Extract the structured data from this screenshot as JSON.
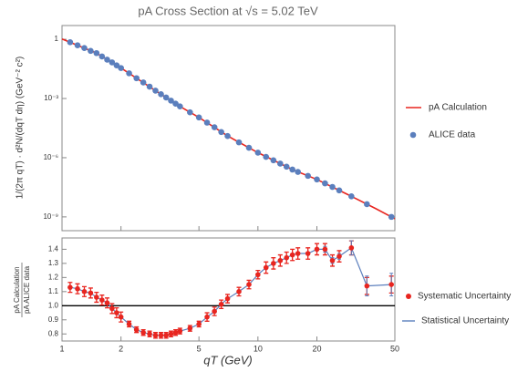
{
  "chart_data": [
    {
      "type": "scatter",
      "title": "pA Cross Section at √s = 5.02 TeV",
      "ylabel": "1/(2π qT) · d²N/(dqT dη) (GeV⁻² c²)",
      "xlim": [
        1,
        50
      ],
      "ylim": [
        2e-10,
        5
      ],
      "log_x": true,
      "log_y": true,
      "yticks": [
        1,
        {
          "value": 0.001,
          "label": "10⁻³"
        },
        {
          "value": 1e-06,
          "label": "10⁻⁶"
        },
        {
          "value": 1e-09,
          "label": "10⁻⁹"
        }
      ],
      "series": [
        {
          "name": "pA Calculation",
          "color": "#e8251f",
          "type": "line",
          "x": [
            1,
            1.5,
            2,
            3,
            4,
            5,
            7,
            10,
            15,
            20,
            30,
            40,
            50
          ],
          "values": [
            1.05,
            0.2,
            0.035,
            0.0025,
            0.0004,
            0.00011,
            1.26e-05,
            1.8e-06,
            2.5e-07,
            7.9e-08,
            1.1e-08,
            2.6e-09,
            8.1e-10
          ]
        },
        {
          "name": "ALICE data",
          "color": "#5b7fbd",
          "type": "scatter",
          "x": [
            1.1,
            1.2,
            1.3,
            1.4,
            1.5,
            1.6,
            1.7,
            1.8,
            1.9,
            2.0,
            2.2,
            2.4,
            2.6,
            2.8,
            3.0,
            3.2,
            3.4,
            3.6,
            3.8,
            4.0,
            4.5,
            5,
            5.5,
            6,
            6.5,
            7,
            8,
            9,
            10,
            11,
            12,
            13,
            14,
            15,
            16,
            18,
            20,
            22,
            24,
            26,
            30,
            36,
            48
          ],
          "values": [
            0.71,
            0.5,
            0.36,
            0.26,
            0.2,
            0.135,
            0.093,
            0.068,
            0.048,
            0.035,
            0.019,
            0.0107,
            0.0065,
            0.004,
            0.0025,
            0.00166,
            0.00112,
            0.00078,
            0.00055,
            0.0004,
            0.0002,
            0.00011,
            6e-05,
            3.5e-05,
            2e-05,
            1.26e-05,
            6e-06,
            3.2e-06,
            1.8e-06,
            1.1e-06,
            7.4e-07,
            5e-07,
            3.5e-07,
            2.5e-07,
            1.9e-07,
            1.2e-07,
            7.9e-08,
            5e-08,
            3.3e-08,
            2.2e-08,
            1.1e-08,
            4.4e-09,
            1e-09
          ]
        }
      ]
    },
    {
      "type": "errorbar",
      "ylabel_top": "pA Calculation",
      "ylabel_bottom": "pA ALICE data",
      "xlabel": "qT (GeV)",
      "xlim": [
        1,
        50
      ],
      "log_x": true,
      "ylim": [
        0.75,
        1.48
      ],
      "xticks": [
        1,
        2,
        5,
        10,
        20,
        50
      ],
      "yticks": [
        {
          "value": 0.8,
          "label": "0.8"
        },
        {
          "value": 0.9,
          "label": "0.9"
        },
        {
          "value": 1.0,
          "label": "1.0"
        },
        {
          "value": 1.1,
          "label": "1.1"
        },
        {
          "value": 1.2,
          "label": "1.2"
        },
        {
          "value": 1.3,
          "label": "1.3"
        },
        {
          "value": 1.4,
          "label": "1.4"
        }
      ],
      "hline": 1,
      "x": [
        1.1,
        1.2,
        1.3,
        1.4,
        1.5,
        1.6,
        1.7,
        1.8,
        1.9,
        2.0,
        2.2,
        2.4,
        2.6,
        2.8,
        3.0,
        3.2,
        3.4,
        3.6,
        3.8,
        4.0,
        4.5,
        5,
        5.5,
        6,
        6.5,
        7,
        8,
        9,
        10,
        11,
        12,
        13,
        14,
        15,
        16,
        18,
        20,
        22,
        24,
        26,
        30,
        36,
        48
      ],
      "values": [
        1.13,
        1.12,
        1.1,
        1.09,
        1.06,
        1.04,
        1.02,
        0.98,
        0.95,
        0.92,
        0.87,
        0.83,
        0.81,
        0.8,
        0.79,
        0.79,
        0.79,
        0.8,
        0.81,
        0.82,
        0.84,
        0.87,
        0.92,
        0.96,
        1.01,
        1.05,
        1.1,
        1.15,
        1.22,
        1.27,
        1.3,
        1.32,
        1.34,
        1.36,
        1.37,
        1.37,
        1.4,
        1.4,
        1.32,
        1.35,
        1.41,
        1.14,
        1.15
      ],
      "series": [
        {
          "name": "Systematic Uncertainty",
          "color": "#e8251f",
          "errors": [
            0.035,
            0.035,
            0.035,
            0.035,
            0.035,
            0.035,
            0.035,
            0.035,
            0.035,
            0.035,
            0.02,
            0.02,
            0.02,
            0.02,
            0.02,
            0.02,
            0.02,
            0.02,
            0.02,
            0.02,
            0.02,
            0.02,
            0.03,
            0.03,
            0.03,
            0.03,
            0.03,
            0.03,
            0.03,
            0.04,
            0.04,
            0.04,
            0.04,
            0.04,
            0.04,
            0.04,
            0.04,
            0.04,
            0.04,
            0.04,
            0.05,
            0.06,
            0.06
          ]
        },
        {
          "name": "Statistical Uncertainty",
          "color": "#5b7fbd",
          "errors": [
            0.01,
            0.01,
            0.01,
            0.01,
            0.01,
            0.01,
            0.01,
            0.01,
            0.01,
            0.01,
            0.01,
            0.01,
            0.01,
            0.01,
            0.01,
            0.01,
            0.01,
            0.01,
            0.01,
            0.01,
            0.01,
            0.01,
            0.01,
            0.01,
            0.01,
            0.01,
            0.01,
            0.01,
            0.01,
            0.01,
            0.01,
            0.01,
            0.01,
            0.01,
            0.01,
            0.01,
            0.01,
            0.02,
            0.02,
            0.02,
            0.05,
            0.07,
            0.08
          ]
        }
      ]
    }
  ]
}
